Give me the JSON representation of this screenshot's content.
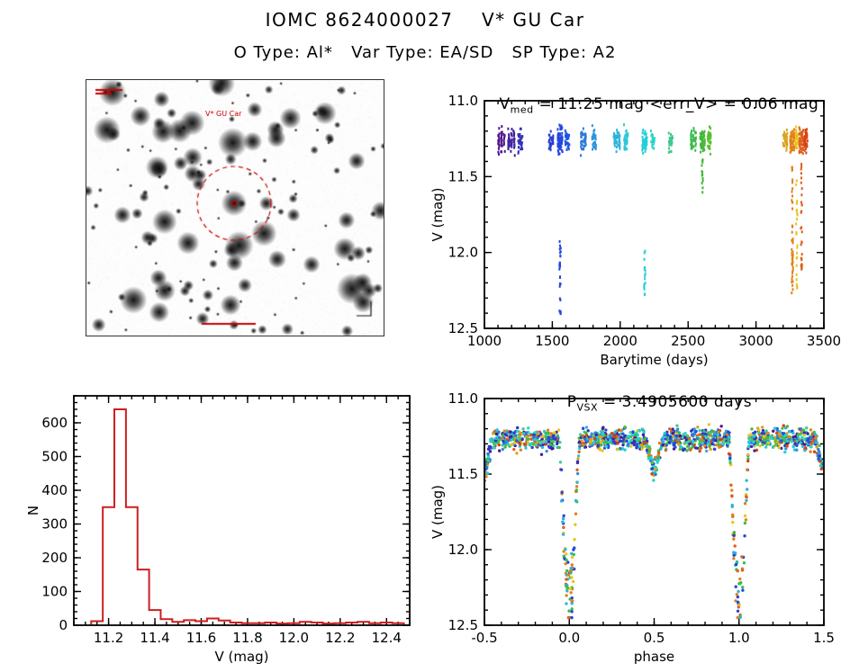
{
  "header": {
    "title": "IOMC 8624000027    V* GU Car",
    "subtitle": "O Type: Al*   Var Type: EA/SD   SP Type: A2"
  },
  "finder": {
    "target_label": "V* GU Car",
    "marker_color": "#cc0000"
  },
  "chart_data": [
    {
      "id": "lightcurve",
      "type": "scatter",
      "title": "V_med = 11.25 mag <err_V> = 0.06 mag",
      "title_parts": {
        "p1": "V",
        "s1": "med",
        "p2": " = 11.25 mag <err_V> = 0.06 mag"
      },
      "xlabel": "Barytime (days)",
      "ylabel": "V (mag)",
      "xlim": [
        1000,
        3500
      ],
      "ylim": [
        11.0,
        12.5
      ],
      "y_inverted": true,
      "xtick_vals": [
        1000,
        1500,
        2000,
        2500,
        3000,
        3500
      ],
      "xtick_labels": [
        "1000",
        "1500",
        "2000",
        "2500",
        "3000",
        "3500"
      ],
      "ytick_vals": [
        11.0,
        11.5,
        12.0,
        12.5
      ],
      "ytick_labels": [
        "11.0",
        "11.5",
        "12.0",
        "12.5"
      ],
      "x_minor_step": 100,
      "y_minor_step": 0.1,
      "baseline_mag": 11.26,
      "baseline_band": [
        11.14,
        11.41
      ],
      "clusters": [
        {
          "x": 1126,
          "sx": 22,
          "n": 45,
          "color": "#52158c"
        },
        {
          "x": 1199,
          "sx": 22,
          "n": 55,
          "color": "#41249e"
        },
        {
          "x": 1265,
          "sx": 14,
          "n": 35,
          "color": "#3730b8"
        },
        {
          "x": 1491,
          "sx": 12,
          "n": 25,
          "color": "#2b3fd0"
        },
        {
          "x": 1557,
          "sx": 14,
          "n": 70,
          "color": "#2447e0",
          "eclipse": {
            "from": 11.9,
            "to": 12.42,
            "n": 28
          }
        },
        {
          "x": 1610,
          "sx": 12,
          "n": 40,
          "color": "#1f55e0"
        },
        {
          "x": 1729,
          "sx": 16,
          "n": 40,
          "color": "#2e79d8"
        },
        {
          "x": 1809,
          "sx": 12,
          "n": 30,
          "color": "#2f93dc"
        },
        {
          "x": 1975,
          "sx": 20,
          "n": 50,
          "color": "#2fb3db"
        },
        {
          "x": 2041,
          "sx": 12,
          "n": 30,
          "color": "#2cc6db"
        },
        {
          "x": 2180,
          "sx": 14,
          "n": 45,
          "color": "#22cfd8",
          "eclipse": {
            "from": 11.95,
            "to": 12.3,
            "n": 16
          }
        },
        {
          "x": 2240,
          "sx": 10,
          "n": 22,
          "color": "#2ad4c8"
        },
        {
          "x": 2373,
          "sx": 12,
          "n": 25,
          "color": "#3fc98f"
        },
        {
          "x": 2539,
          "sx": 16,
          "n": 40,
          "color": "#3dbb4e"
        },
        {
          "x": 2605,
          "sx": 14,
          "n": 55,
          "color": "#44b83c",
          "eclipse": {
            "from": 11.38,
            "to": 11.62,
            "n": 14
          }
        },
        {
          "x": 2658,
          "sx": 10,
          "n": 28,
          "color": "#58c232"
        },
        {
          "x": 3215,
          "sx": 12,
          "n": 30,
          "color": "#d8a31e"
        },
        {
          "x": 3268,
          "sx": 14,
          "n": 60,
          "color": "#e2811c",
          "eclipse": {
            "from": 11.42,
            "to": 12.28,
            "n": 45
          }
        },
        {
          "x": 3300,
          "sx": 8,
          "n": 25,
          "color": "#e8c51e",
          "eclipse": {
            "from": 11.5,
            "to": 12.25,
            "n": 25
          }
        },
        {
          "x": 3334,
          "sx": 12,
          "n": 50,
          "color": "#df5f1c",
          "eclipse": {
            "from": 11.4,
            "to": 12.15,
            "n": 30
          }
        },
        {
          "x": 3367,
          "sx": 10,
          "n": 35,
          "color": "#d84313"
        }
      ]
    },
    {
      "id": "histogram",
      "type": "bar",
      "xlabel": "V (mag)",
      "ylabel": "N",
      "xlim": [
        11.05,
        12.5
      ],
      "ylim": [
        0,
        680
      ],
      "xtick_vals": [
        11.2,
        11.4,
        11.6,
        11.8,
        12.0,
        12.2,
        12.4
      ],
      "xtick_labels": [
        "11.2",
        "11.4",
        "11.6",
        "11.8",
        "12.0",
        "12.2",
        "12.4"
      ],
      "ytick_vals": [
        0,
        100,
        200,
        300,
        400,
        500,
        600
      ],
      "ytick_labels": [
        "0",
        "100",
        "200",
        "300",
        "400",
        "500",
        "600"
      ],
      "x_minor_step": 0.05,
      "y_minor_step": 20,
      "bin_start": 11.125,
      "bin_width": 0.05,
      "counts": [
        12,
        350,
        640,
        350,
        165,
        45,
        18,
        10,
        15,
        12,
        20,
        14,
        8,
        6,
        6,
        8,
        5,
        6,
        10,
        8,
        5,
        6,
        8,
        10,
        6,
        8,
        6
      ],
      "color": "#cc1f1f"
    },
    {
      "id": "phase",
      "type": "scatter",
      "title": "P_VSX = 3.4905600 days",
      "title_parts": {
        "p1": "P",
        "s1": "VSX",
        "p2": " = 3.4905600 days"
      },
      "xlabel": "phase",
      "ylabel": "V (mag)",
      "xlim": [
        -0.5,
        1.5
      ],
      "ylim": [
        11.0,
        12.5
      ],
      "y_inverted": true,
      "xtick_vals": [
        -0.5,
        0.0,
        0.5,
        1.0,
        1.5
      ],
      "xtick_labels": [
        "-0.5",
        "0.0",
        "0.5",
        "1.0",
        "1.5"
      ],
      "ytick_vals": [
        11.0,
        11.5,
        12.0,
        12.5
      ],
      "ytick_labels": [
        "11.0",
        "11.5",
        "12.0",
        "12.5"
      ],
      "x_minor_step": 0.1,
      "y_minor_step": 0.1,
      "model": {
        "base_mag": 11.27,
        "scatter_sigma": 0.04,
        "primary_phase": 0.0,
        "primary_depth": 1.16,
        "primary_half_width": 0.06,
        "secondary_phase": 0.5,
        "secondary_depth": 0.2,
        "secondary_half_width": 0.05,
        "n_points": 1500
      },
      "palette": [
        "#52158c",
        "#41249e",
        "#3730b8",
        "#2b3fd0",
        "#2447e0",
        "#1f55e0",
        "#2e79d8",
        "#2f93dc",
        "#2fb3db",
        "#2cc6db",
        "#22cfd8",
        "#2ad4c8",
        "#3fc98f",
        "#3dbb4e",
        "#44b83c",
        "#58c232",
        "#d8a31e",
        "#e2811c",
        "#e8c51e",
        "#df5f1c",
        "#d84313"
      ],
      "eclipse_palette": [
        "#2447e0",
        "#e2811c",
        "#e8c51e",
        "#df5f1c",
        "#2fb3db",
        "#3dbb4e"
      ]
    }
  ]
}
